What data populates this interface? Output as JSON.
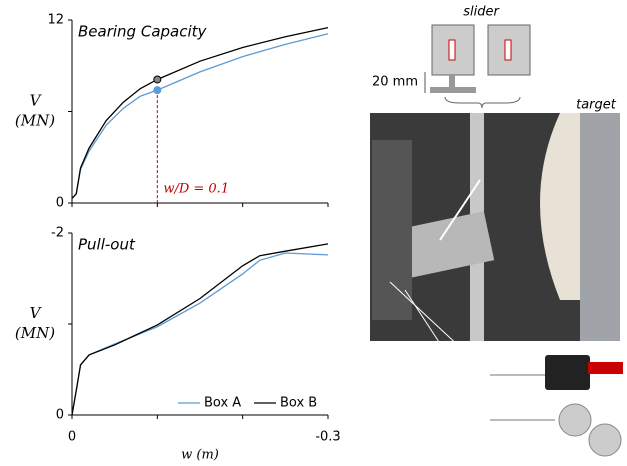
{
  "chart_data": [
    {
      "type": "line",
      "title": "Bearing Capacity",
      "ylabel": [
        "V",
        "(MN)"
      ],
      "x": [
        0,
        0.005,
        0.01,
        0.02,
        0.04,
        0.06,
        0.08,
        0.1,
        0.15,
        0.2,
        0.25,
        0.3
      ],
      "series": [
        {
          "color": "#5b9bd5",
          "values": [
            0.3,
            0.6,
            2.2,
            3.4,
            5.1,
            6.2,
            7.0,
            7.4,
            8.6,
            9.6,
            10.4,
            11.1
          ]
        },
        {
          "color": "#000000",
          "values": [
            0.3,
            0.6,
            2.3,
            3.6,
            5.4,
            6.6,
            7.5,
            8.1,
            9.3,
            10.2,
            10.9,
            11.5
          ]
        }
      ],
      "xlim": [
        0,
        0.3
      ],
      "minor_xticks": [
        0,
        0.1,
        0.2,
        0.3
      ],
      "ylim": [
        0,
        12
      ],
      "yticks": [
        0,
        12
      ],
      "minor_yticks": [
        6
      ],
      "annotation": {
        "text": "w/D = 0.1",
        "x": 0.1,
        "color": "#c00000"
      }
    },
    {
      "type": "line",
      "title": "Pull-out",
      "ylabel": [
        "V",
        "(MN)"
      ],
      "xlabel": "w (m)",
      "x": [
        0,
        -0.005,
        -0.01,
        -0.02,
        -0.05,
        -0.1,
        -0.15,
        -0.2,
        -0.22,
        -0.25,
        -0.3
      ],
      "series": [
        {
          "name": "Box A",
          "color": "#5b9bd5",
          "values": [
            0,
            -0.27,
            -0.55,
            -0.66,
            -0.78,
            -0.97,
            -1.23,
            -1.55,
            -1.7,
            -1.78,
            -1.76
          ]
        },
        {
          "name": "Box B",
          "color": "#000000",
          "values": [
            0,
            -0.27,
            -0.55,
            -0.66,
            -0.77,
            -0.99,
            -1.28,
            -1.64,
            -1.75,
            -1.8,
            -1.88
          ]
        }
      ],
      "xlim": [
        0,
        -0.3
      ],
      "xticks": [
        0,
        -0.3
      ],
      "minor_xticks": [
        -0.1,
        -0.2
      ],
      "ylim": [
        0,
        -2
      ],
      "yticks": [
        0,
        -2
      ],
      "minor_yticks": [
        -1
      ],
      "legend": "lower right"
    }
  ],
  "figure_labels": {
    "slider": "slider",
    "thickness": "20 mm",
    "target": "target"
  }
}
